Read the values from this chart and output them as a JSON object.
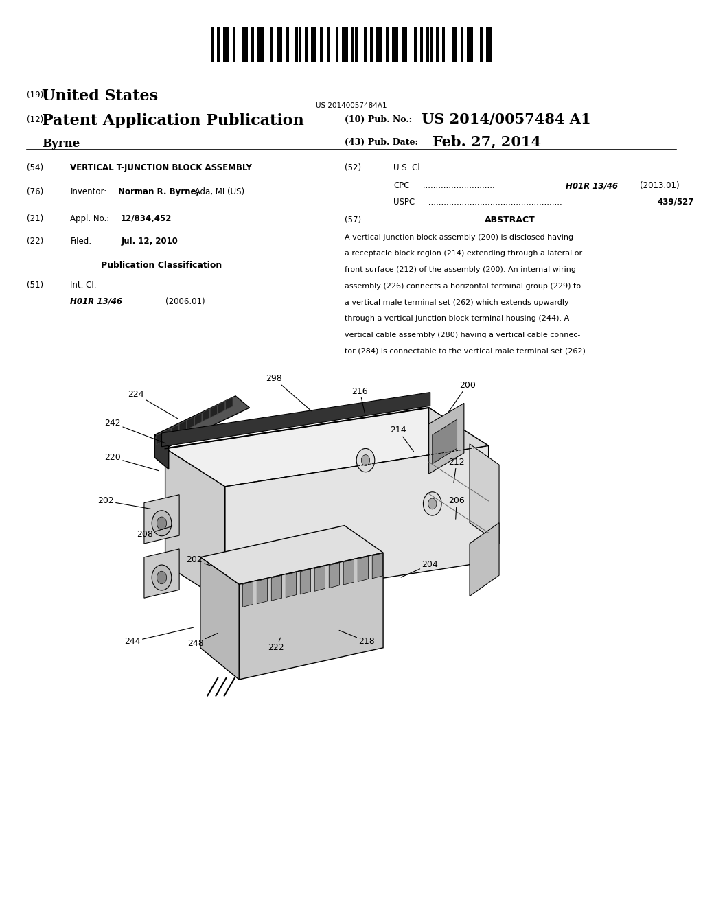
{
  "background_color": "#ffffff",
  "barcode_text": "US 20140057484A1",
  "header_19": "(19)",
  "header_19_text": "United States",
  "header_12": "(12)",
  "header_12_text": "Patent Application Publication",
  "header_inventor_name": "Byrne",
  "header_10_label": "(10) Pub. No.:",
  "header_10_value": "US 2014/0057484 A1",
  "header_43_label": "(43) Pub. Date:",
  "header_43_value": "Feb. 27, 2014",
  "field_54_label": "(54)",
  "field_54_text": "VERTICAL T-JUNCTION BLOCK ASSEMBLY",
  "field_76_label": "(76)",
  "field_76_prefix": "Inventor:",
  "field_76_text_bold": "Norman R. Byrne,",
  "field_76_text_normal": " Ada, MI (US)",
  "field_21_label": "(21)",
  "field_21_prefix": "Appl. No.:",
  "field_21_value": "12/834,452",
  "field_22_label": "(22)",
  "field_22_prefix": "Filed:",
  "field_22_value": "Jul. 12, 2010",
  "pub_class_header": "Publication Classification",
  "field_51_label": "(51)",
  "field_51_prefix": "Int. Cl.",
  "field_51_class_italic": "H01R 13/46",
  "field_51_class_year": "(2006.01)",
  "field_52_label": "(52)",
  "field_52_prefix": "U.S. Cl.",
  "field_52_cpc_label": "CPC",
  "field_52_cpc_value_italic": "H01R 13/46",
  "field_52_cpc_value_year": "(2013.01)",
  "field_52_uspc_label": "USPC",
  "field_52_uspc_value": "439/527",
  "field_57_label": "(57)",
  "field_57_header": "ABSTRACT",
  "abstract_line1": "A vertical junction block assembly (200) is disclosed having",
  "abstract_line2": "a receptacle block region (214) extending through a lateral or",
  "abstract_line3": "front surface (212) of the assembly (200). An internal wiring",
  "abstract_line4": "assembly (226) connects a horizontal terminal group (229) to",
  "abstract_line5": "a vertical male terminal set (262) which extends upwardly",
  "abstract_line6": "through a vertical junction block terminal housing (244). A",
  "abstract_line7": "vertical cable assembly (280) having a vertical cable connec-",
  "abstract_line8": "tor (284) is connectable to the vertical male terminal set (262)."
}
